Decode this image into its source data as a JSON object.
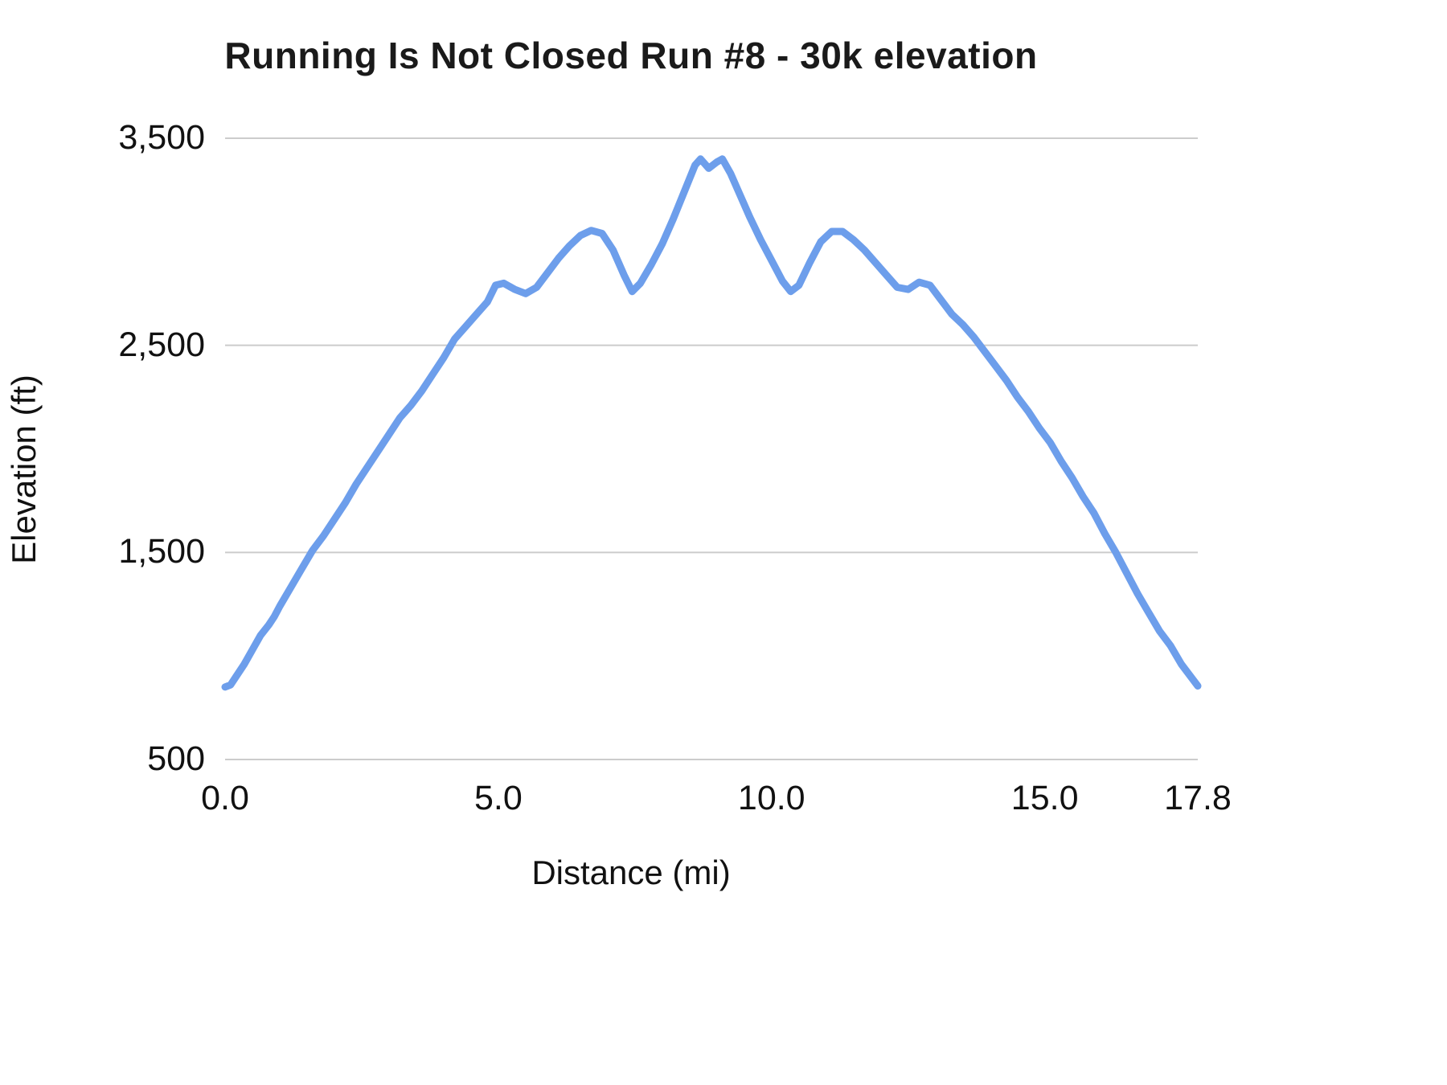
{
  "chart_data": {
    "type": "line",
    "title": "Running Is Not Closed Run #8 - 30k elevation",
    "xlabel": "Distance (mi)",
    "ylabel": "Elevation (ft)",
    "xlim": [
      0,
      17.8
    ],
    "ylim": [
      500,
      3500
    ],
    "grid": "horizontal",
    "legend": "none",
    "colors": {
      "line": "#6d9eeb",
      "gridline": "#cccccc",
      "text": "#111111"
    },
    "x_ticks": [
      {
        "value": 0.0,
        "label": "0.0"
      },
      {
        "value": 5.0,
        "label": "5.0"
      },
      {
        "value": 10.0,
        "label": "10.0"
      },
      {
        "value": 15.0,
        "label": "15.0"
      },
      {
        "value": 17.8,
        "label": "17.8"
      }
    ],
    "y_ticks": [
      {
        "value": 500,
        "label": "500"
      },
      {
        "value": 1500,
        "label": "1,500"
      },
      {
        "value": 2500,
        "label": "2,500"
      },
      {
        "value": 3500,
        "label": "3,500"
      }
    ],
    "series": [
      {
        "name": "elevation",
        "points": [
          [
            0.0,
            850
          ],
          [
            0.1,
            860
          ],
          [
            0.2,
            900
          ],
          [
            0.35,
            960
          ],
          [
            0.5,
            1030
          ],
          [
            0.65,
            1100
          ],
          [
            0.8,
            1150
          ],
          [
            0.9,
            1190
          ],
          [
            1.0,
            1240
          ],
          [
            1.2,
            1330
          ],
          [
            1.4,
            1420
          ],
          [
            1.6,
            1510
          ],
          [
            1.8,
            1580
          ],
          [
            2.0,
            1660
          ],
          [
            2.2,
            1740
          ],
          [
            2.4,
            1830
          ],
          [
            2.6,
            1910
          ],
          [
            2.8,
            1990
          ],
          [
            3.0,
            2070
          ],
          [
            3.2,
            2150
          ],
          [
            3.4,
            2210
          ],
          [
            3.6,
            2280
          ],
          [
            3.8,
            2360
          ],
          [
            4.0,
            2440
          ],
          [
            4.2,
            2530
          ],
          [
            4.4,
            2590
          ],
          [
            4.6,
            2650
          ],
          [
            4.8,
            2710
          ],
          [
            4.95,
            2790
          ],
          [
            5.1,
            2800
          ],
          [
            5.3,
            2770
          ],
          [
            5.5,
            2750
          ],
          [
            5.7,
            2780
          ],
          [
            5.9,
            2850
          ],
          [
            6.1,
            2920
          ],
          [
            6.3,
            2980
          ],
          [
            6.5,
            3030
          ],
          [
            6.7,
            3055
          ],
          [
            6.9,
            3040
          ],
          [
            7.1,
            2960
          ],
          [
            7.3,
            2840
          ],
          [
            7.45,
            2760
          ],
          [
            7.6,
            2800
          ],
          [
            7.8,
            2890
          ],
          [
            8.0,
            2990
          ],
          [
            8.2,
            3110
          ],
          [
            8.4,
            3240
          ],
          [
            8.6,
            3370
          ],
          [
            8.7,
            3400
          ],
          [
            8.85,
            3355
          ],
          [
            9.0,
            3385
          ],
          [
            9.1,
            3400
          ],
          [
            9.25,
            3330
          ],
          [
            9.4,
            3240
          ],
          [
            9.6,
            3120
          ],
          [
            9.8,
            3010
          ],
          [
            10.0,
            2910
          ],
          [
            10.2,
            2810
          ],
          [
            10.35,
            2760
          ],
          [
            10.5,
            2790
          ],
          [
            10.7,
            2900
          ],
          [
            10.9,
            3000
          ],
          [
            11.1,
            3050
          ],
          [
            11.3,
            3050
          ],
          [
            11.5,
            3010
          ],
          [
            11.7,
            2960
          ],
          [
            11.9,
            2900
          ],
          [
            12.1,
            2840
          ],
          [
            12.3,
            2780
          ],
          [
            12.5,
            2770
          ],
          [
            12.7,
            2805
          ],
          [
            12.9,
            2790
          ],
          [
            13.1,
            2720
          ],
          [
            13.3,
            2650
          ],
          [
            13.5,
            2600
          ],
          [
            13.7,
            2540
          ],
          [
            13.9,
            2470
          ],
          [
            14.1,
            2400
          ],
          [
            14.3,
            2330
          ],
          [
            14.5,
            2250
          ],
          [
            14.7,
            2180
          ],
          [
            14.9,
            2100
          ],
          [
            15.1,
            2030
          ],
          [
            15.3,
            1940
          ],
          [
            15.5,
            1860
          ],
          [
            15.7,
            1770
          ],
          [
            15.9,
            1690
          ],
          [
            16.1,
            1590
          ],
          [
            16.3,
            1500
          ],
          [
            16.5,
            1400
          ],
          [
            16.7,
            1300
          ],
          [
            16.9,
            1210
          ],
          [
            17.1,
            1120
          ],
          [
            17.3,
            1050
          ],
          [
            17.5,
            960
          ],
          [
            17.7,
            890
          ],
          [
            17.8,
            855
          ]
        ]
      }
    ]
  }
}
